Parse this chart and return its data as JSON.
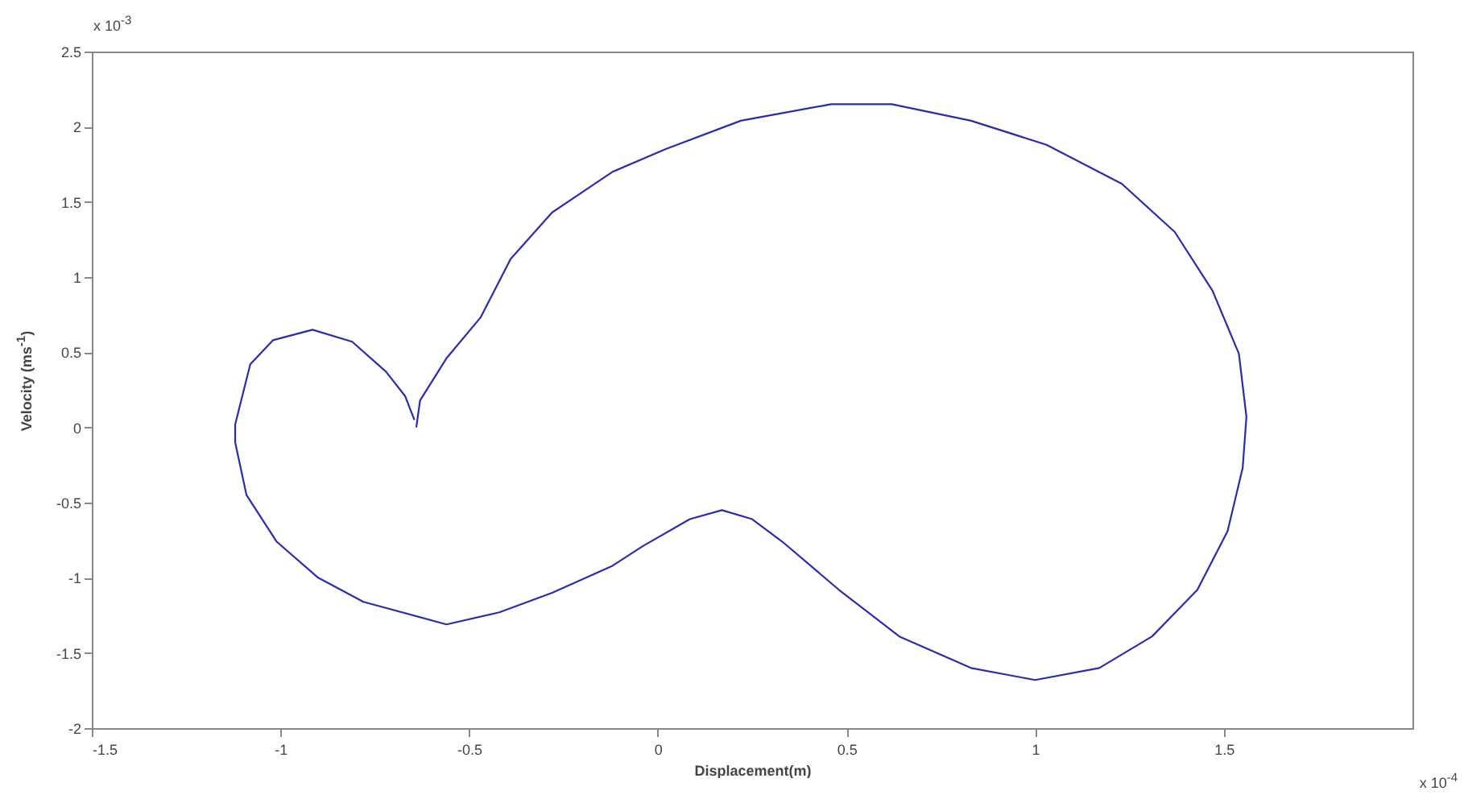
{
  "chart_data": {
    "type": "line",
    "xlabel": "Displacement(m)",
    "ylabel": "Velocity (ms$^{-1}$)",
    "annotations": [
      "x 10$^{-3}$",
      "x 10$^{-4}$"
    ],
    "xlim": [
      -1.5,
      2
    ],
    "xticks": [
      -1.5,
      -1,
      -0.5,
      0,
      0.5,
      1,
      1.5
    ],
    "ylim": [
      -2,
      2.5
    ],
    "yticks": [
      -2,
      -1.5,
      -1,
      -0.5,
      0,
      0.5,
      1,
      1.5,
      2,
      2.5
    ],
    "grid": false,
    "marker": "none",
    "line_style": "solid",
    "series": [
      {
        "color": "#2b2bb0",
        "x": [
          -0.64,
          -0.63,
          -0.56,
          -0.47,
          -0.39,
          -0.28,
          -0.12,
          0.02,
          0.22,
          0.46,
          0.62,
          0.83,
          1.03,
          1.23,
          1.37,
          1.47,
          1.54,
          1.56,
          1.55,
          1.51,
          1.43,
          1.31,
          1.17,
          1.0,
          0.83,
          0.64,
          0.48,
          0.33,
          0.25,
          0.17,
          0.085,
          -0.04,
          -0.12,
          -0.28,
          -0.42,
          -0.56,
          -0.78,
          -0.9,
          -1.01,
          -1.09,
          -1.12,
          -1.12,
          -1.08,
          -1.02,
          -0.915,
          -0.81,
          -0.72,
          -0.67,
          -0.645
        ],
        "values": [
          0.0,
          0.18,
          0.46,
          0.73,
          1.12,
          1.43,
          1.7,
          1.85,
          2.04,
          2.15,
          2.15,
          2.04,
          1.88,
          1.62,
          1.3,
          0.91,
          0.49,
          0.07,
          -0.27,
          -0.69,
          -1.08,
          -1.39,
          -1.6,
          -1.68,
          -1.6,
          -1.39,
          -1.08,
          -0.76,
          -0.61,
          -0.55,
          -0.61,
          -0.79,
          -0.92,
          -1.1,
          -1.23,
          -1.31,
          -1.16,
          -1.0,
          -0.76,
          -0.45,
          -0.1,
          0.02,
          0.42,
          0.58,
          0.65,
          0.57,
          0.37,
          0.21,
          0.05
        ]
      }
    ]
  }
}
